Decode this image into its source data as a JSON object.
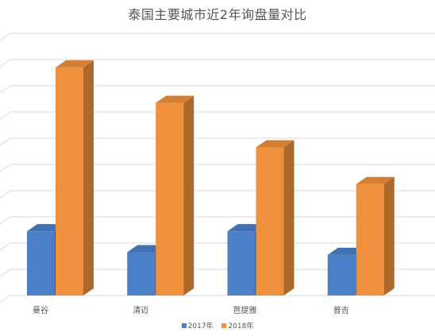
{
  "chart_data": {
    "type": "bar",
    "title": "泰国主要城市近2年询盘量对比",
    "categories": [
      "曼谷",
      "清迈",
      "芭提雅",
      "普吉"
    ],
    "series": [
      {
        "name": "2017年",
        "values": [
          2.45,
          1.65,
          2.45,
          1.55
        ],
        "color": "#4b7fc8"
      },
      {
        "name": "2018年",
        "values": [
          8.7,
          7.35,
          5.65,
          4.25
        ],
        "color": "#f0903d"
      }
    ],
    "xlabel": "",
    "ylabel": "",
    "ylim": [
      0,
      10
    ],
    "grid": true,
    "legend_position": "bottom",
    "style": "3d-column"
  }
}
